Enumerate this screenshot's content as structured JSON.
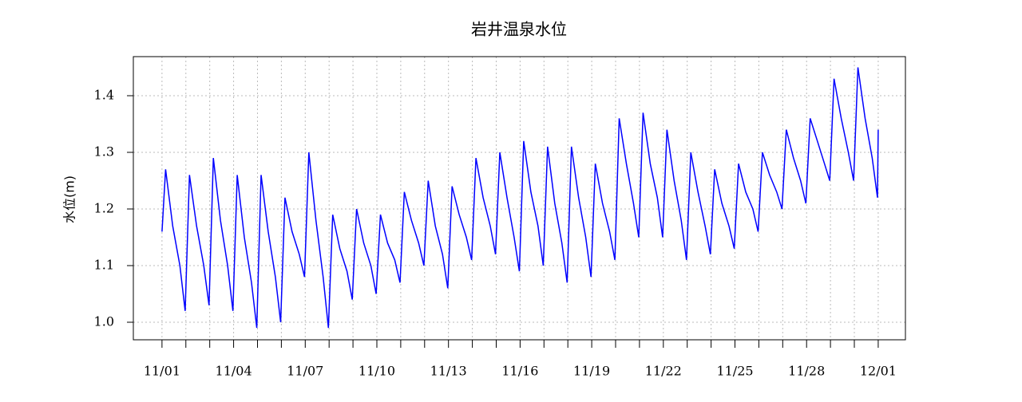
{
  "chart_data": {
    "type": "line",
    "title": "岩井温泉水位",
    "y_label": "水位(m)",
    "color": "#0000ff",
    "grid": true,
    "xlim": [
      -1.2,
      31.14
    ],
    "ylim": [
      0.969,
      1.469
    ],
    "yticks": [
      {
        "value": 1,
        "label": "1.0"
      },
      1.1,
      1.2,
      1.3,
      1.4
    ],
    "xticks": [
      {
        "value": 0,
        "label": "11/01"
      },
      {
        "value": 3,
        "label": "11/04"
      },
      {
        "value": 6,
        "label": "11/07"
      },
      {
        "value": 9,
        "label": "11/10"
      },
      {
        "value": 12,
        "label": "11/13"
      },
      {
        "value": 15,
        "label": "11/16"
      },
      {
        "value": 18,
        "label": "11/19"
      },
      {
        "value": 21,
        "label": "11/22"
      },
      {
        "value": 24,
        "label": "11/25"
      },
      {
        "value": 27,
        "label": "11/28"
      },
      {
        "value": 30,
        "label": "12/01"
      }
    ],
    "xminorticks": [
      1,
      2,
      4,
      5,
      7,
      8,
      10,
      11,
      13,
      14,
      16,
      17,
      19,
      20,
      22,
      23,
      25,
      26,
      28,
      29
    ],
    "x": [
      0,
      0.15,
      0.45,
      0.75,
      0.97,
      1.15,
      1.45,
      1.75,
      1.97,
      2.15,
      2.45,
      2.75,
      2.97,
      3.15,
      3.45,
      3.75,
      3.97,
      4.15,
      4.45,
      4.75,
      4.97,
      5.15,
      5.45,
      5.75,
      5.97,
      6.15,
      6.45,
      6.75,
      6.97,
      7.15,
      7.45,
      7.75,
      7.97,
      8.15,
      8.45,
      8.75,
      8.97,
      9.15,
      9.45,
      9.75,
      9.97,
      10.15,
      10.45,
      10.75,
      10.97,
      11.15,
      11.45,
      11.75,
      11.97,
      12.15,
      12.45,
      12.75,
      12.97,
      13.15,
      13.45,
      13.75,
      13.97,
      14.15,
      14.45,
      14.75,
      14.97,
      15.15,
      15.45,
      15.75,
      15.97,
      16.15,
      16.45,
      16.75,
      16.97,
      17.15,
      17.45,
      17.75,
      17.97,
      18.15,
      18.45,
      18.75,
      18.97,
      19.15,
      19.45,
      19.75,
      19.97,
      20.15,
      20.45,
      20.75,
      20.97,
      21.15,
      21.45,
      21.75,
      21.97,
      22.15,
      22.45,
      22.75,
      22.97,
      23.15,
      23.45,
      23.75,
      23.97,
      24.15,
      24.45,
      24.75,
      24.97,
      25.15,
      25.45,
      25.75,
      25.97,
      26.15,
      26.45,
      26.75,
      26.97,
      27.15,
      27.45,
      27.75,
      27.97,
      28.15,
      28.45,
      28.75,
      28.97,
      29.15,
      29.45,
      29.75,
      29.97,
      30
    ],
    "values": [
      1.16,
      1.27,
      1.17,
      1.1,
      1.02,
      1.26,
      1.17,
      1.1,
      1.03,
      1.29,
      1.18,
      1.1,
      1.02,
      1.26,
      1.15,
      1.07,
      0.99,
      1.26,
      1.16,
      1.08,
      1.0,
      1.22,
      1.16,
      1.12,
      1.08,
      1.3,
      1.18,
      1.08,
      0.99,
      1.19,
      1.13,
      1.09,
      1.04,
      1.2,
      1.14,
      1.1,
      1.05,
      1.19,
      1.14,
      1.11,
      1.07,
      1.23,
      1.18,
      1.14,
      1.1,
      1.25,
      1.17,
      1.12,
      1.06,
      1.24,
      1.19,
      1.15,
      1.11,
      1.29,
      1.22,
      1.17,
      1.12,
      1.3,
      1.22,
      1.15,
      1.09,
      1.32,
      1.23,
      1.17,
      1.1,
      1.31,
      1.21,
      1.14,
      1.07,
      1.31,
      1.22,
      1.15,
      1.08,
      1.28,
      1.21,
      1.16,
      1.11,
      1.36,
      1.28,
      1.21,
      1.15,
      1.37,
      1.28,
      1.22,
      1.15,
      1.34,
      1.25,
      1.18,
      1.11,
      1.3,
      1.23,
      1.17,
      1.12,
      1.27,
      1.21,
      1.17,
      1.13,
      1.28,
      1.23,
      1.2,
      1.16,
      1.3,
      1.26,
      1.23,
      1.2,
      1.34,
      1.29,
      1.25,
      1.21,
      1.36,
      1.32,
      1.28,
      1.25,
      1.43,
      1.36,
      1.3,
      1.25,
      1.45,
      1.36,
      1.29,
      1.22,
      1.34
    ]
  }
}
